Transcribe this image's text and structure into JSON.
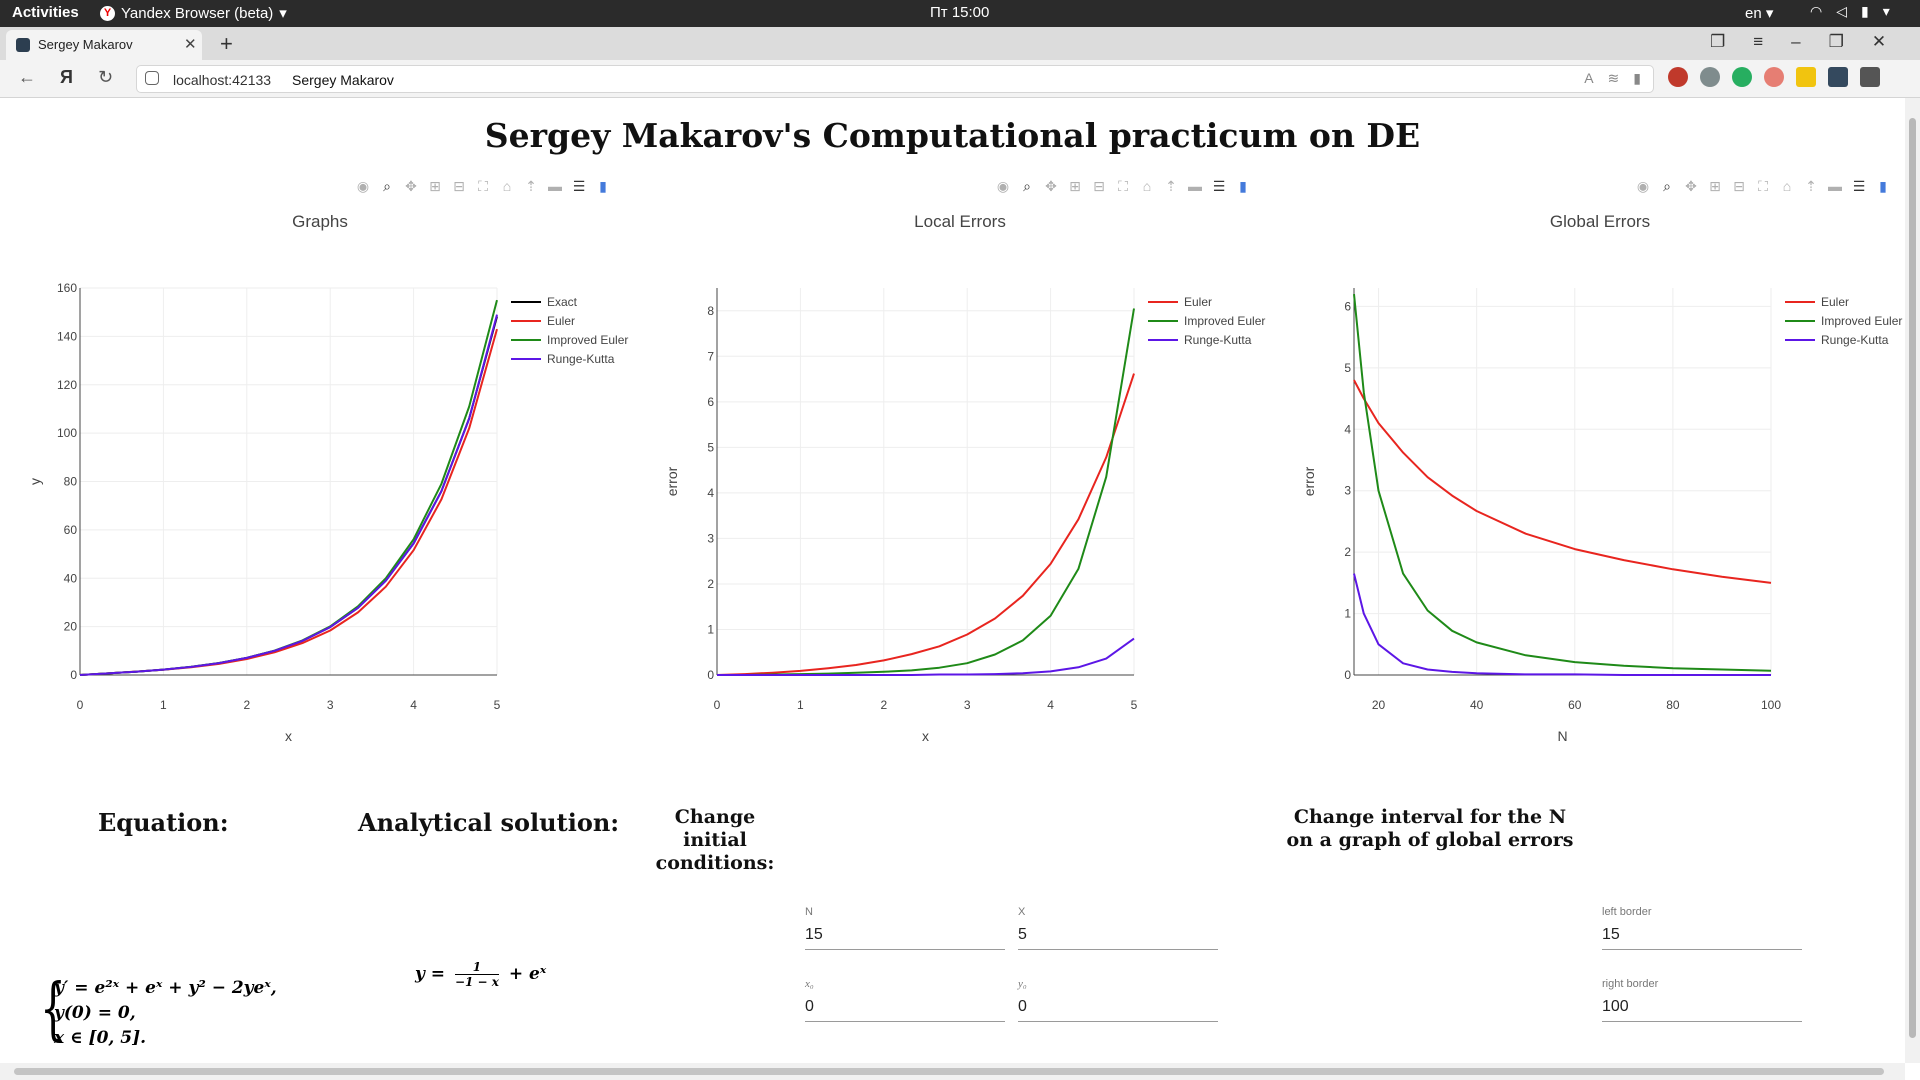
{
  "system_bar": {
    "activities": "Activities",
    "app": "Yandex Browser (beta)",
    "clock": "Пт 15:00",
    "lang": "en"
  },
  "browser": {
    "tab_title": "Sergey Makarov",
    "host": "localhost:42133",
    "page_title": "Sergey Makarov"
  },
  "page": {
    "heading": "Sergey Makarov's Computational practicum on DE",
    "equation_title": "Equation:",
    "equation_lines": [
      "y′ = e²ˣ + eˣ + y² − 2yeˣ,",
      "y(0) = 0,",
      "x ∈ [0, 5]."
    ],
    "solution_title": "Analytical solution:",
    "solution_lhs": "y =",
    "solution_num": "1",
    "solution_den": "−1 − x",
    "solution_rhs": "+ eˣ",
    "initial_title": "Change initial conditions:",
    "fields": {
      "N": {
        "label": "N",
        "value": "15"
      },
      "X": {
        "label": "X",
        "value": "5"
      },
      "x0": {
        "label": "x₀",
        "value": "0"
      },
      "y0": {
        "label": "y₀",
        "value": "0"
      }
    },
    "interval_title": "Change interval for the N on a graph of global errors",
    "left_border": {
      "label": "left border",
      "value": "15"
    },
    "right_border": {
      "label": "right border",
      "value": "100"
    }
  },
  "colors": {
    "Exact": "#000000",
    "Euler": "#e8251f",
    "Improved Euler": "#1f8a18",
    "Runge-Kutta": "#5c16e6"
  },
  "chart_data": [
    {
      "type": "line",
      "title": "Graphs",
      "xlabel": "x",
      "ylabel": "y",
      "xlim": [
        0,
        5
      ],
      "ylim": [
        0,
        160
      ],
      "xticks": [
        0,
        1,
        2,
        3,
        4,
        5
      ],
      "yticks": [
        0,
        20,
        40,
        60,
        80,
        100,
        120,
        140,
        160
      ],
      "legend": "top-right",
      "x": [
        0,
        0.333,
        0.667,
        1,
        1.333,
        1.667,
        2,
        2.333,
        2.667,
        3,
        3.333,
        3.667,
        4,
        4.333,
        4.667,
        5
      ],
      "series": [
        {
          "name": "Exact",
          "values": [
            0,
            0.65,
            1.35,
            2.22,
            3.36,
            4.92,
            7.06,
            9.99,
            14.1,
            19.8,
            27.8,
            39.0,
            54.4,
            76.0,
            106.1,
            148.2
          ]
        },
        {
          "name": "Euler",
          "values": [
            0,
            0.67,
            1.4,
            2.2,
            3.2,
            4.6,
            6.6,
            9.4,
            13.2,
            18.4,
            25.9,
            36.5,
            51.6,
            72.6,
            102.0,
            143.0
          ]
        },
        {
          "name": "Improved Euler",
          "values": [
            0,
            0.65,
            1.36,
            2.23,
            3.38,
            4.95,
            7.1,
            10.1,
            14.3,
            20.1,
            28.4,
            40.0,
            56.1,
            79.0,
            111.0,
            155.0
          ]
        },
        {
          "name": "Runge-Kutta",
          "values": [
            0,
            0.65,
            1.35,
            2.22,
            3.36,
            4.92,
            7.06,
            9.99,
            14.1,
            19.8,
            27.8,
            39.0,
            54.4,
            76.0,
            106.0,
            149.0
          ]
        }
      ]
    },
    {
      "type": "line",
      "title": "Local Errors",
      "xlabel": "x",
      "ylabel": "error",
      "xlim": [
        0,
        5
      ],
      "ylim": [
        0,
        8.5
      ],
      "xticks": [
        0,
        1,
        2,
        3,
        4,
        5
      ],
      "yticks": [
        0,
        1,
        2,
        3,
        4,
        5,
        6,
        7,
        8
      ],
      "legend": "top-right",
      "x": [
        0,
        0.333,
        0.667,
        1,
        1.333,
        1.667,
        2,
        2.333,
        2.667,
        3,
        3.333,
        3.667,
        4,
        4.333,
        4.667,
        5
      ],
      "series": [
        {
          "name": "Euler",
          "values": [
            0,
            0.02,
            0.05,
            0.09,
            0.15,
            0.22,
            0.32,
            0.46,
            0.63,
            0.89,
            1.24,
            1.74,
            2.44,
            3.42,
            4.78,
            6.62
          ]
        },
        {
          "name": "Improved Euler",
          "values": [
            0,
            0.0,
            0.01,
            0.02,
            0.03,
            0.05,
            0.07,
            0.1,
            0.16,
            0.26,
            0.45,
            0.76,
            1.3,
            2.33,
            4.35,
            8.05
          ]
        },
        {
          "name": "Runge-Kutta",
          "values": [
            0,
            0,
            0,
            0,
            0,
            0,
            0.0,
            0.0,
            0.01,
            0.01,
            0.02,
            0.04,
            0.08,
            0.17,
            0.36,
            0.8
          ]
        }
      ]
    },
    {
      "type": "line",
      "title": "Global Errors",
      "xlabel": "N",
      "ylabel": "error",
      "xlim": [
        15,
        100
      ],
      "ylim": [
        0,
        6.3
      ],
      "xticks": [
        20,
        40,
        60,
        80,
        100
      ],
      "yticks": [
        0,
        1,
        2,
        3,
        4,
        5,
        6
      ],
      "legend": "top-right",
      "x": [
        15,
        17,
        20,
        25,
        30,
        35,
        40,
        50,
        60,
        70,
        80,
        90,
        100
      ],
      "series": [
        {
          "name": "Euler",
          "values": [
            4.8,
            4.5,
            4.1,
            3.62,
            3.22,
            2.92,
            2.67,
            2.3,
            2.05,
            1.87,
            1.72,
            1.6,
            1.5
          ]
        },
        {
          "name": "Improved Euler",
          "values": [
            6.2,
            4.6,
            3.0,
            1.65,
            1.05,
            0.72,
            0.53,
            0.32,
            0.21,
            0.15,
            0.11,
            0.09,
            0.07
          ]
        },
        {
          "name": "Runge-Kutta",
          "values": [
            1.65,
            1.0,
            0.5,
            0.19,
            0.09,
            0.05,
            0.03,
            0.01,
            0.01,
            0.0,
            0.0,
            0.0,
            0.0
          ]
        }
      ]
    }
  ]
}
